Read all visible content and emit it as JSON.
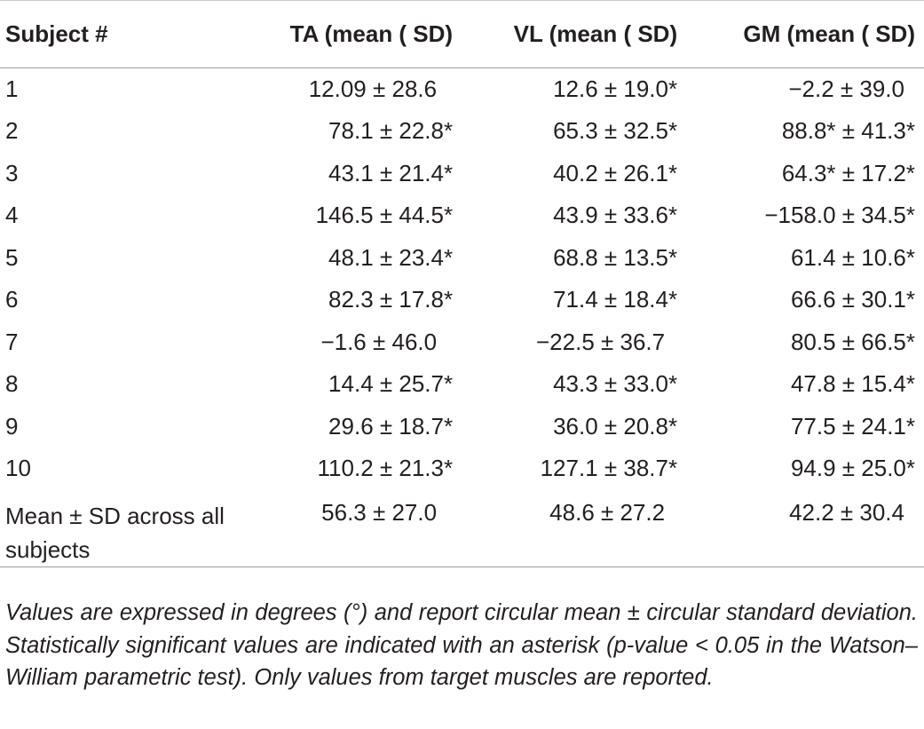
{
  "table": {
    "headers": [
      "Subject #",
      "TA (mean ( SD)",
      "VL (mean ( SD)",
      "GM (mean ( SD)"
    ],
    "rows": [
      {
        "subject": "1",
        "ta": "12.09 ± 28.6",
        "vl": "12.6 ± 19.0*",
        "gm": "−2.2 ± 39.0"
      },
      {
        "subject": "2",
        "ta": "78.1 ± 22.8*",
        "vl": "65.3 ± 32.5*",
        "gm": "88.8* ± 41.3*"
      },
      {
        "subject": "3",
        "ta": "43.1 ± 21.4*",
        "vl": "40.2 ± 26.1*",
        "gm": "64.3* ± 17.2*"
      },
      {
        "subject": "4",
        "ta": "146.5 ± 44.5*",
        "vl": "43.9 ± 33.6*",
        "gm": "−158.0 ± 34.5*"
      },
      {
        "subject": "5",
        "ta": "48.1 ± 23.4*",
        "vl": "68.8 ± 13.5*",
        "gm": "61.4 ± 10.6*"
      },
      {
        "subject": "6",
        "ta": "82.3 ± 17.8*",
        "vl": "71.4 ± 18.4*",
        "gm": "66.6 ± 30.1*"
      },
      {
        "subject": "7",
        "ta": "−1.6 ± 46.0",
        "vl": "−22.5 ± 36.7",
        "gm": "80.5 ± 66.5*"
      },
      {
        "subject": "8",
        "ta": "14.4 ± 25.7*",
        "vl": "43.3 ± 33.0*",
        "gm": "47.8 ± 15.4*"
      },
      {
        "subject": "9",
        "ta": "29.6 ± 18.7*",
        "vl": "36.0 ± 20.8*",
        "gm": "77.5 ± 24.1*"
      },
      {
        "subject": "10",
        "ta": "110.2 ± 21.3*",
        "vl": "127.1 ± 38.7*",
        "gm": "94.9 ± 25.0*"
      },
      {
        "subject": "Mean ± SD across all subjects",
        "ta": "56.3 ± 27.0",
        "vl": "48.6 ± 27.2",
        "gm": "42.2 ± 30.4"
      }
    ]
  },
  "footnote": "Values are expressed in degrees (°) and report circular mean ± circular standard deviation. Statistically significant values are indicated with an asterisk (p-value < 0.05 in the Watson–William parametric test). Only values from target muscles are reported."
}
